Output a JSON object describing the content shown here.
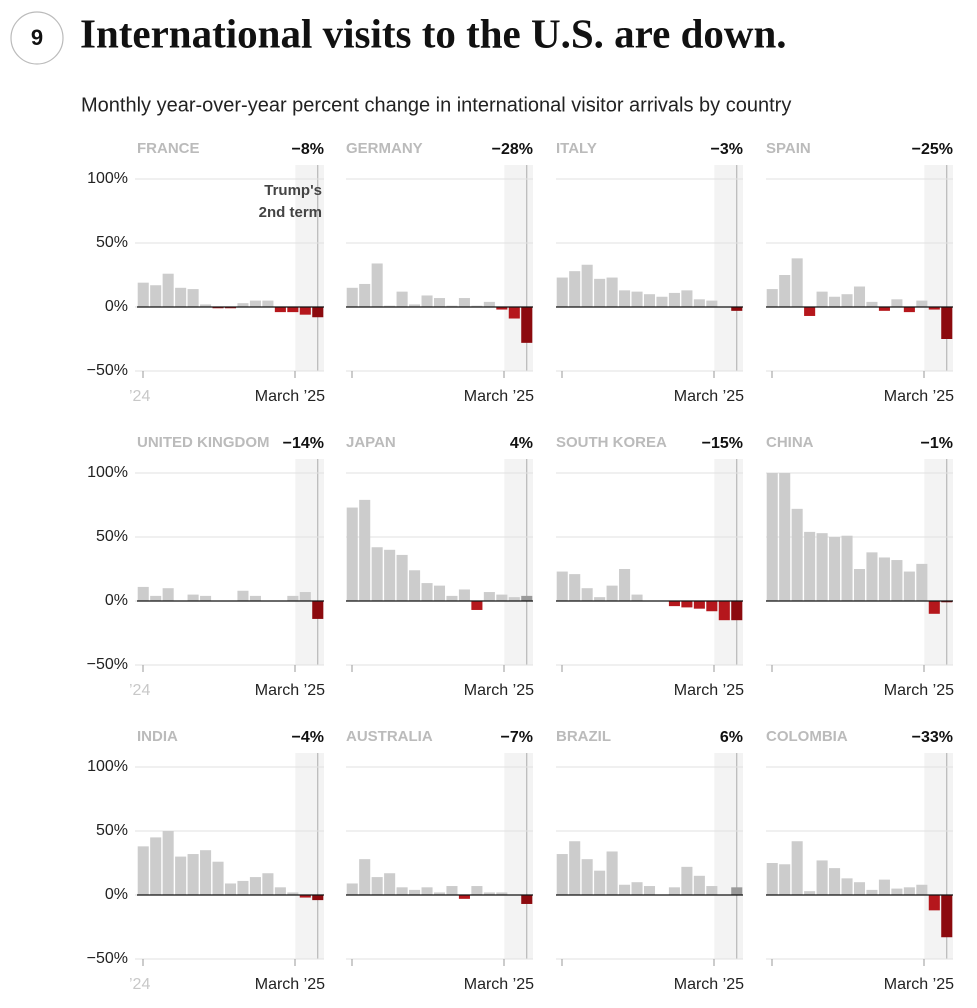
{
  "badge": "9",
  "title": "International visits to the U.S. are down.",
  "subtitle": "Monthly year-over-year percent change in international visitor arrivals by country",
  "bar_colors": {
    "positive": "#cccccc",
    "negative": "#b5171c",
    "latest_positive": "#9a9a9a",
    "latest_negative": "#8c0a0e"
  },
  "chart_data": [
    {
      "type": "bar",
      "title": "FRANCE",
      "annotation": [
        "Trump's",
        "2nd term"
      ],
      "categories": [
        "’24",
        null,
        null,
        null,
        null,
        null,
        null,
        null,
        null,
        null,
        null,
        null,
        null,
        null,
        "March ’25"
      ],
      "values": [
        19,
        17,
        26,
        15,
        14,
        2,
        -1,
        -1,
        3,
        5,
        5,
        -4,
        -4,
        -6,
        -8
      ],
      "value_labels": [
        null,
        null,
        null,
        null,
        null,
        null,
        null,
        null,
        null,
        null,
        null,
        null,
        null,
        null,
        "−8%"
      ],
      "ylim": [
        -50,
        100
      ],
      "yticks": [
        {
          "value": -50,
          "label": "−50%"
        },
        {
          "value": 0,
          "label": "0%"
        },
        {
          "value": 50,
          "label": "50%"
        },
        {
          "value": 100,
          "label": "100%"
        }
      ]
    },
    {
      "type": "bar",
      "title": "GERMANY",
      "categories": [
        null,
        null,
        null,
        null,
        null,
        null,
        null,
        null,
        null,
        null,
        null,
        null,
        null,
        null,
        "March ’25"
      ],
      "values": [
        15,
        18,
        34,
        1,
        12,
        2,
        9,
        7,
        1,
        7,
        1,
        4,
        -2,
        -9,
        -28
      ],
      "value_labels": [
        null,
        null,
        null,
        null,
        null,
        null,
        null,
        null,
        null,
        null,
        null,
        null,
        null,
        null,
        "−28%"
      ],
      "ylim": [
        -50,
        100
      ],
      "yticks": [
        -50,
        0,
        50,
        100
      ]
    },
    {
      "type": "bar",
      "title": "ITALY",
      "categories": [
        null,
        null,
        null,
        null,
        null,
        null,
        null,
        null,
        null,
        null,
        null,
        null,
        null,
        null,
        "March ’25"
      ],
      "values": [
        23,
        28,
        33,
        22,
        23,
        13,
        12,
        10,
        8,
        11,
        13,
        6,
        5,
        0,
        -3
      ],
      "value_labels": [
        null,
        null,
        null,
        null,
        null,
        null,
        null,
        null,
        null,
        null,
        null,
        null,
        null,
        null,
        "−3%"
      ],
      "ylim": [
        -50,
        100
      ],
      "yticks": [
        -50,
        0,
        50,
        100
      ]
    },
    {
      "type": "bar",
      "title": "SPAIN",
      "categories": [
        null,
        null,
        null,
        null,
        null,
        null,
        null,
        null,
        null,
        null,
        null,
        null,
        null,
        null,
        "March ’25"
      ],
      "values": [
        14,
        25,
        38,
        -7,
        12,
        8,
        10,
        16,
        4,
        -3,
        6,
        -4,
        5,
        -2,
        -25
      ],
      "value_labels": [
        null,
        null,
        null,
        null,
        null,
        null,
        null,
        null,
        null,
        null,
        null,
        null,
        null,
        null,
        "−25%"
      ],
      "ylim": [
        -50,
        100
      ],
      "yticks": [
        -50,
        0,
        50,
        100
      ]
    },
    {
      "type": "bar",
      "title": "UNITED KINGDOM",
      "categories": [
        "’24",
        null,
        null,
        null,
        null,
        null,
        null,
        null,
        null,
        null,
        null,
        null,
        null,
        null,
        "March ’25"
      ],
      "values": [
        11,
        4,
        10,
        0,
        5,
        4,
        0,
        0,
        8,
        4,
        0,
        0,
        4,
        7,
        -14
      ],
      "value_labels": [
        null,
        null,
        null,
        null,
        null,
        null,
        null,
        null,
        null,
        null,
        null,
        null,
        null,
        null,
        "−14%"
      ],
      "ylim": [
        -50,
        100
      ],
      "yticks": [
        {
          "value": -50,
          "label": "−50%"
        },
        {
          "value": 0,
          "label": "0%"
        },
        {
          "value": 50,
          "label": "50%"
        },
        {
          "value": 100,
          "label": "100%"
        }
      ]
    },
    {
      "type": "bar",
      "title": "JAPAN",
      "categories": [
        null,
        null,
        null,
        null,
        null,
        null,
        null,
        null,
        null,
        null,
        null,
        null,
        null,
        null,
        "March ’25"
      ],
      "values": [
        73,
        79,
        42,
        40,
        36,
        24,
        14,
        12,
        4,
        9,
        -7,
        7,
        5,
        3,
        4
      ],
      "value_labels": [
        null,
        null,
        null,
        null,
        null,
        null,
        null,
        null,
        null,
        null,
        null,
        null,
        null,
        null,
        "4%"
      ],
      "ylim": [
        -50,
        100
      ],
      "yticks": [
        -50,
        0,
        50,
        100
      ]
    },
    {
      "type": "bar",
      "title": "SOUTH KOREA",
      "categories": [
        null,
        null,
        null,
        null,
        null,
        null,
        null,
        null,
        null,
        null,
        null,
        null,
        null,
        null,
        "March ’25"
      ],
      "values": [
        23,
        21,
        10,
        3,
        12,
        25,
        5,
        0,
        0,
        -4,
        -5,
        -6,
        -8,
        -15,
        -15
      ],
      "value_labels": [
        null,
        null,
        null,
        null,
        null,
        null,
        null,
        null,
        null,
        null,
        null,
        null,
        null,
        null,
        "−15%"
      ],
      "ylim": [
        -50,
        100
      ],
      "yticks": [
        -50,
        0,
        50,
        100
      ]
    },
    {
      "type": "bar",
      "title": "CHINA",
      "categories": [
        null,
        null,
        null,
        null,
        null,
        null,
        null,
        null,
        null,
        null,
        null,
        null,
        null,
        null,
        "March ’25"
      ],
      "values": [
        100,
        100,
        72,
        54,
        53,
        50,
        51,
        25,
        38,
        34,
        32,
        23,
        29,
        -10,
        -1
      ],
      "value_labels": [
        null,
        null,
        null,
        null,
        null,
        null,
        null,
        null,
        null,
        null,
        null,
        null,
        null,
        null,
        "−1%"
      ],
      "ylim": [
        -50,
        100
      ],
      "yticks": [
        -50,
        0,
        50,
        100
      ]
    },
    {
      "type": "bar",
      "title": "INDIA",
      "categories": [
        "’24",
        null,
        null,
        null,
        null,
        null,
        null,
        null,
        null,
        null,
        null,
        null,
        null,
        null,
        "March ’25"
      ],
      "values": [
        38,
        45,
        50,
        30,
        32,
        35,
        26,
        9,
        11,
        14,
        17,
        6,
        2,
        -2,
        -4
      ],
      "value_labels": [
        null,
        null,
        null,
        null,
        null,
        null,
        null,
        null,
        null,
        null,
        null,
        null,
        null,
        null,
        "−4%"
      ],
      "ylim": [
        -50,
        100
      ],
      "yticks": [
        {
          "value": -50,
          "label": "−50%"
        },
        {
          "value": 0,
          "label": "0%"
        },
        {
          "value": 50,
          "label": "50%"
        },
        {
          "value": 100,
          "label": "100%"
        }
      ]
    },
    {
      "type": "bar",
      "title": "AUSTRALIA",
      "categories": [
        null,
        null,
        null,
        null,
        null,
        null,
        null,
        null,
        null,
        null,
        null,
        null,
        null,
        null,
        "March ’25"
      ],
      "values": [
        9,
        28,
        14,
        17,
        6,
        4,
        6,
        2,
        7,
        -3,
        7,
        2,
        2,
        0,
        -7
      ],
      "value_labels": [
        null,
        null,
        null,
        null,
        null,
        null,
        null,
        null,
        null,
        null,
        null,
        null,
        null,
        null,
        "−7%"
      ],
      "ylim": [
        -50,
        100
      ],
      "yticks": [
        -50,
        0,
        50,
        100
      ]
    },
    {
      "type": "bar",
      "title": "BRAZIL",
      "categories": [
        null,
        null,
        null,
        null,
        null,
        null,
        null,
        null,
        null,
        null,
        null,
        null,
        null,
        null,
        "March ’25"
      ],
      "values": [
        32,
        42,
        28,
        19,
        34,
        8,
        10,
        7,
        0,
        6,
        22,
        15,
        7,
        0,
        6
      ],
      "value_labels": [
        null,
        null,
        null,
        null,
        null,
        null,
        null,
        null,
        null,
        null,
        null,
        null,
        null,
        null,
        "6%"
      ],
      "ylim": [
        -50,
        100
      ],
      "yticks": [
        -50,
        0,
        50,
        100
      ]
    },
    {
      "type": "bar",
      "title": "COLOMBIA",
      "categories": [
        null,
        null,
        null,
        null,
        null,
        null,
        null,
        null,
        null,
        null,
        null,
        null,
        null,
        null,
        "March ’25"
      ],
      "values": [
        25,
        24,
        42,
        3,
        27,
        21,
        13,
        10,
        4,
        12,
        5,
        6,
        8,
        -12,
        -33
      ],
      "value_labels": [
        null,
        null,
        null,
        null,
        null,
        null,
        null,
        null,
        null,
        null,
        null,
        null,
        null,
        null,
        "−33%"
      ],
      "ylim": [
        -50,
        100
      ],
      "yticks": [
        -50,
        0,
        50,
        100
      ]
    }
  ]
}
